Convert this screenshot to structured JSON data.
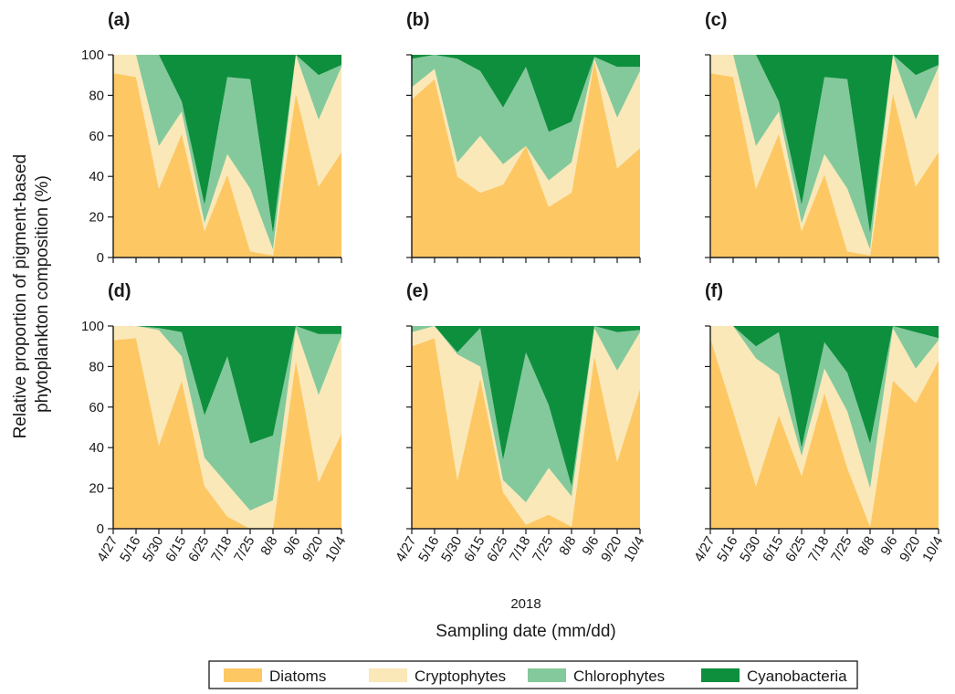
{
  "chart_data": {
    "type": "area",
    "stacked": true,
    "normalized_percent": true,
    "ylabel": "Relative proportion of pigment-based\nphytoplankton composition (%)",
    "xlabel": "Sampling date (mm/dd)",
    "year_label": "2018",
    "x_categories": [
      "4/27",
      "5/16",
      "5/30",
      "6/15",
      "6/25",
      "7/18",
      "7/25",
      "8/8",
      "9/6",
      "9/20",
      "10/4"
    ],
    "y_ticks": [
      0,
      20,
      40,
      60,
      80,
      100
    ],
    "ylim": [
      0,
      100
    ],
    "grid": false,
    "legend_position": "bottom",
    "series_names": [
      "Diatoms",
      "Cryptophytes",
      "Chlorophytes",
      "Cyanobacteria"
    ],
    "colors": {
      "Diatoms": "#FDC864",
      "Cryptophytes": "#FAE8B8",
      "Chlorophytes": "#84C99B",
      "Cyanobacteria": "#0E8F3D"
    },
    "panels": [
      {
        "label": "(a)",
        "series": [
          {
            "name": "Diatoms",
            "values": [
              91,
              89,
              34,
              61,
              13,
              41,
              3,
              1,
              81,
              35,
              52
            ]
          },
          {
            "name": "Cryptophytes",
            "values": [
              9,
              11,
              21,
              11,
              4,
              10,
              31,
              3,
              19,
              33,
              42
            ]
          },
          {
            "name": "Chlorophytes",
            "values": [
              0,
              0,
              45,
              5,
              9,
              38,
              54,
              8,
              0,
              22,
              1
            ]
          },
          {
            "name": "Cyanobacteria",
            "values": [
              0,
              0,
              0,
              23,
              74,
              11,
              12,
              88,
              0,
              10,
              5
            ]
          }
        ]
      },
      {
        "label": "(b)",
        "series": [
          {
            "name": "Diatoms",
            "values": [
              78,
              88,
              40,
              32,
              36,
              55,
              25,
              32,
              97,
              44,
              54
            ]
          },
          {
            "name": "Cryptophytes",
            "values": [
              6,
              5,
              7,
              28,
              10,
              0,
              13,
              15,
              1,
              25,
              38
            ]
          },
          {
            "name": "Chlorophytes",
            "values": [
              14,
              7,
              51,
              32,
              28,
              39,
              24,
              20,
              1,
              25,
              2
            ]
          },
          {
            "name": "Cyanobacteria",
            "values": [
              2,
              0,
              2,
              8,
              26,
              6,
              38,
              33,
              1,
              6,
              6
            ]
          }
        ]
      },
      {
        "label": "(c)",
        "series": [
          {
            "name": "Diatoms",
            "values": [
              91,
              89,
              34,
              61,
              13,
              41,
              3,
              1,
              81,
              35,
              52
            ]
          },
          {
            "name": "Cryptophytes",
            "values": [
              9,
              11,
              21,
              11,
              4,
              10,
              31,
              3,
              19,
              33,
              42
            ]
          },
          {
            "name": "Chlorophytes",
            "values": [
              0,
              0,
              45,
              5,
              9,
              38,
              54,
              8,
              0,
              22,
              1
            ]
          },
          {
            "name": "Cyanobacteria",
            "values": [
              0,
              0,
              0,
              23,
              74,
              11,
              12,
              88,
              0,
              10,
              5
            ]
          }
        ]
      },
      {
        "label": "(d)",
        "series": [
          {
            "name": "Diatoms",
            "values": [
              93,
              94,
              41,
              73,
              21,
              6,
              0,
              0,
              83,
              23,
              47
            ]
          },
          {
            "name": "Cryptophytes",
            "values": [
              7,
              6,
              57,
              12,
              14,
              16,
              9,
              14,
              16,
              43,
              48
            ]
          },
          {
            "name": "Chlorophytes",
            "values": [
              0,
              0,
              1,
              12,
              21,
              63,
              33,
              32,
              1,
              30,
              1
            ]
          },
          {
            "name": "Cyanobacteria",
            "values": [
              0,
              0,
              1,
              3,
              44,
              15,
              58,
              54,
              0,
              4,
              4
            ]
          }
        ]
      },
      {
        "label": "(e)",
        "series": [
          {
            "name": "Diatoms",
            "values": [
              90,
              94,
              24,
              74,
              18,
              2,
              7,
              1,
              85,
              33,
              69
            ]
          },
          {
            "name": "Cryptophytes",
            "values": [
              7,
              6,
              62,
              6,
              6,
              11,
              23,
              15,
              14,
              45,
              28
            ]
          },
          {
            "name": "Chlorophytes",
            "values": [
              3,
              0,
              1,
              19,
              10,
              74,
              31,
              5,
              1,
              19,
              1
            ]
          },
          {
            "name": "Cyanobacteria",
            "values": [
              0,
              0,
              13,
              1,
              66,
              13,
              39,
              79,
              0,
              3,
              2
            ]
          }
        ]
      },
      {
        "label": "(f)",
        "series": [
          {
            "name": "Diatoms",
            "values": [
              94,
              58,
              21,
              56,
              26,
              67,
              30,
              1,
              73,
              62,
              83
            ]
          },
          {
            "name": "Cryptophytes",
            "values": [
              6,
              42,
              63,
              20,
              10,
              12,
              28,
              19,
              26,
              17,
              10
            ]
          },
          {
            "name": "Chlorophytes",
            "values": [
              0,
              0,
              6,
              21,
              4,
              13,
              19,
              22,
              1,
              18,
              1
            ]
          },
          {
            "name": "Cyanobacteria",
            "values": [
              0,
              0,
              10,
              3,
              60,
              8,
              23,
              58,
              0,
              3,
              6
            ]
          }
        ]
      }
    ]
  }
}
